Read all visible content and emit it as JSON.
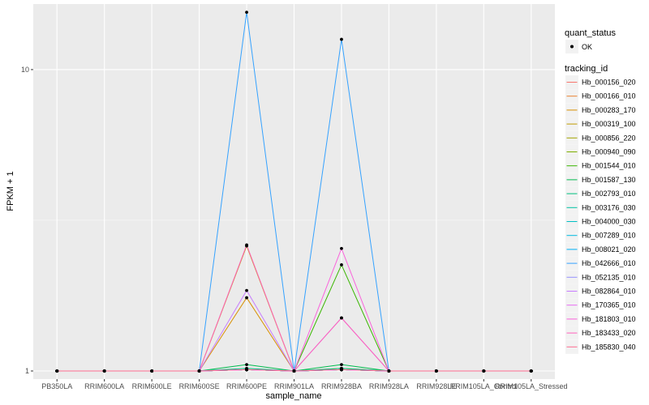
{
  "chart_data": {
    "type": "line",
    "x_label": "sample_name",
    "y_label": "FPKM + 1",
    "y_scale": "log",
    "ylim": [
      0.94,
      16.5
    ],
    "y_ticks": [
      1,
      10
    ],
    "y_tick_labels": [
      "1",
      "10"
    ],
    "categories": [
      "PB350LA",
      "RRIM600LA",
      "RRIM600LE",
      "RRIM600SE",
      "RRIM600PE",
      "RRIM901LA",
      "RRIM928BA",
      "RRIM928LA",
      "RRIM928LE",
      "RRIM105LA_Control",
      "RRIM105LA_Stressed"
    ],
    "grid": true,
    "legend_position": "right",
    "point_legend": {
      "title": "quant_status",
      "entries": [
        {
          "label": "OK",
          "color": "#000000"
        }
      ]
    },
    "line_legend_title": "tracking_id",
    "series": [
      {
        "name": "Hb_000156_020",
        "color": "#F8766D",
        "values": [
          1,
          1,
          1,
          1,
          1.01,
          1,
          1.01,
          1,
          1,
          1,
          1
        ]
      },
      {
        "name": "Hb_000166_010",
        "color": "#EA8331",
        "values": [
          1,
          1,
          1,
          1,
          1.01,
          1,
          1.01,
          1,
          1,
          1,
          1
        ]
      },
      {
        "name": "Hb_000283_170",
        "color": "#D89000",
        "values": [
          1,
          1,
          1,
          1,
          1.75,
          1,
          1.01,
          1,
          1,
          1,
          1
        ]
      },
      {
        "name": "Hb_000319_100",
        "color": "#C09B00",
        "values": [
          1,
          1,
          1,
          1,
          2.6,
          1,
          1.01,
          1,
          1,
          1,
          1
        ]
      },
      {
        "name": "Hb_000856_220",
        "color": "#A3A500",
        "values": [
          1,
          1,
          1,
          1,
          1.01,
          1,
          1.02,
          1,
          1,
          1,
          1
        ]
      },
      {
        "name": "Hb_000940_090",
        "color": "#7CAE00",
        "values": [
          1,
          1,
          1,
          1,
          1.01,
          1,
          1.01,
          1,
          1,
          1,
          1
        ]
      },
      {
        "name": "Hb_001544_010",
        "color": "#39B600",
        "values": [
          1,
          1,
          1,
          1,
          1.01,
          1,
          2.25,
          1,
          1,
          1,
          1
        ]
      },
      {
        "name": "Hb_001587_130",
        "color": "#00BB4E",
        "values": [
          1,
          1,
          1,
          1,
          1.05,
          1,
          1.05,
          1,
          1,
          1,
          1
        ]
      },
      {
        "name": "Hb_002793_010",
        "color": "#00BF7D",
        "values": [
          1,
          1,
          1,
          1,
          1.02,
          1,
          1.02,
          1,
          1,
          1,
          1
        ]
      },
      {
        "name": "Hb_003176_030",
        "color": "#00C1A3",
        "values": [
          1,
          1,
          1,
          1,
          1.01,
          1,
          1.01,
          1,
          1,
          1,
          1
        ]
      },
      {
        "name": "Hb_004000_030",
        "color": "#00BFC4",
        "values": [
          1,
          1,
          1,
          1,
          1.01,
          1,
          1.01,
          1,
          1,
          1,
          1
        ]
      },
      {
        "name": "Hb_007289_010",
        "color": "#00BAE0",
        "values": [
          1,
          1,
          1,
          1,
          1.01,
          1,
          1.01,
          1,
          1,
          1,
          1
        ]
      },
      {
        "name": "Hb_008021_020",
        "color": "#00B0F6",
        "values": [
          1,
          1,
          1,
          1,
          1.01,
          1,
          1.01,
          1,
          1,
          1,
          1
        ]
      },
      {
        "name": "Hb_042666_010",
        "color": "#35A2FF",
        "values": [
          1,
          1,
          1,
          1,
          15.5,
          1,
          12.6,
          1,
          1,
          1,
          1
        ]
      },
      {
        "name": "Hb_052135_010",
        "color": "#9590FF",
        "values": [
          1,
          1,
          1,
          1,
          1.01,
          1,
          1.01,
          1,
          1,
          1,
          1
        ]
      },
      {
        "name": "Hb_082864_010",
        "color": "#C77CFF",
        "values": [
          1,
          1,
          1,
          1,
          1.85,
          1,
          1.5,
          1,
          1,
          1,
          1
        ]
      },
      {
        "name": "Hb_170365_010",
        "color": "#E76BF3",
        "values": [
          1,
          1,
          1,
          1,
          1.01,
          1,
          1.01,
          1,
          1,
          1,
          1
        ]
      },
      {
        "name": "Hb_181803_010",
        "color": "#FA62DB",
        "values": [
          1,
          1,
          1,
          1,
          1.01,
          1,
          2.55,
          1,
          1,
          1,
          1
        ]
      },
      {
        "name": "Hb_183433_020",
        "color": "#FF62BC",
        "values": [
          1,
          1,
          1,
          1,
          2.62,
          1,
          1.5,
          1,
          1,
          1,
          1
        ]
      },
      {
        "name": "Hb_185830_040",
        "color": "#FF6C91",
        "values": [
          1,
          1,
          1,
          1,
          1.01,
          1,
          1.01,
          1,
          1,
          1,
          1
        ]
      }
    ]
  }
}
